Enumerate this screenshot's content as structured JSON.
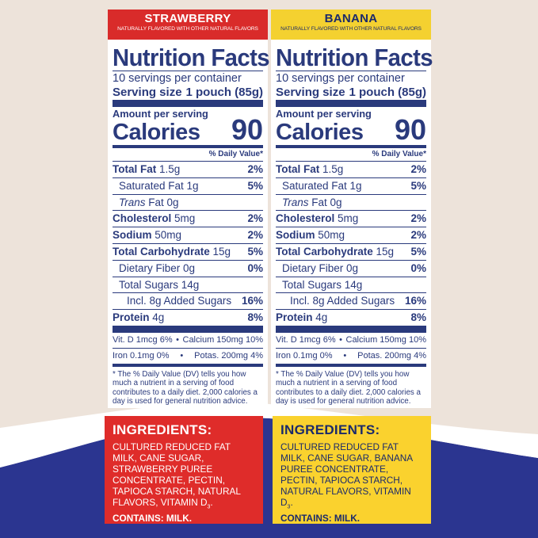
{
  "colors": {
    "strawberry_red": "#d92b2a",
    "banana_yellow": "#f4d130",
    "navy": "#2a3a7c",
    "background_cream": "#ede3da",
    "wave_blue": "#2b3590"
  },
  "labels": [
    {
      "flavor": "STRAWBERRY",
      "subtitle": "NATURALLY FLAVORED WITH OTHER NATURAL FLAVORS",
      "title": "Nutrition Facts",
      "servings": "10 servings per container",
      "serving_size_label": "Serving size",
      "serving_size_value": "1 pouch (85g)",
      "amount_per_serving": "Amount per serving",
      "calories_label": "Calories",
      "calories_value": "90",
      "dv_header": "% Daily Value*",
      "total_fat_label": "Total Fat",
      "total_fat_amount": "1.5g",
      "total_fat_dv": "2%",
      "sat_fat": "Saturated Fat 1g",
      "sat_fat_dv": "5%",
      "trans_fat_label": "Trans",
      "trans_fat_rest": "Fat 0g",
      "cholesterol_label": "Cholesterol",
      "cholesterol_amount": "5mg",
      "cholesterol_dv": "2%",
      "sodium_label": "Sodium",
      "sodium_amount": "50mg",
      "sodium_dv": "2%",
      "carb_label": "Total Carbohydrate",
      "carb_amount": "15g",
      "carb_dv": "5%",
      "fiber": "Dietary Fiber 0g",
      "fiber_dv": "0%",
      "sugars": "Total Sugars 14g",
      "added_sugars": "Incl. 8g Added Sugars",
      "added_sugars_dv": "16%",
      "protein_label": "Protein",
      "protein_amount": "4g",
      "protein_dv": "8%",
      "vitd": "Vit. D 1mcg 6%",
      "calcium": "Calcium 150mg 10%",
      "iron": "Iron 0.1mg 0%",
      "potassium": "Potas. 200mg 4%",
      "bullet": "•",
      "footnote": "* The % Daily Value (DV) tells you how much a nutrient in a serving of food contributes to a daily diet. 2,000 calories a day is used for general nutrition advice.",
      "ingredients_heading": "INGREDIENTS:",
      "ingredients_text": "CULTURED REDUCED FAT MILK, CANE SUGAR, STRAWBERRY PUREE CONCENTRATE, PECTIN, TAPIOCA STARCH, NATURAL FLAVORS, VITAMIN D",
      "ingredients_sub": "3",
      "ingredients_end": ".",
      "contains": "CONTAINS: MILK."
    },
    {
      "flavor": "BANANA",
      "subtitle": "NATURALLY FLAVORED WITH OTHER NATURAL FLAVORS",
      "title": "Nutrition Facts",
      "servings": "10 servings per container",
      "serving_size_label": "Serving size",
      "serving_size_value": "1 pouch (85g)",
      "amount_per_serving": "Amount per serving",
      "calories_label": "Calories",
      "calories_value": "90",
      "dv_header": "% Daily Value*",
      "total_fat_label": "Total Fat",
      "total_fat_amount": "1.5g",
      "total_fat_dv": "2%",
      "sat_fat": "Saturated Fat 1g",
      "sat_fat_dv": "5%",
      "trans_fat_label": "Trans",
      "trans_fat_rest": "Fat 0g",
      "cholesterol_label": "Cholesterol",
      "cholesterol_amount": "5mg",
      "cholesterol_dv": "2%",
      "sodium_label": "Sodium",
      "sodium_amount": "50mg",
      "sodium_dv": "2%",
      "carb_label": "Total Carbohydrate",
      "carb_amount": "15g",
      "carb_dv": "5%",
      "fiber": "Dietary Fiber 0g",
      "fiber_dv": "0%",
      "sugars": "Total Sugars 14g",
      "added_sugars": "Incl. 8g Added Sugars",
      "added_sugars_dv": "16%",
      "protein_label": "Protein",
      "protein_amount": "4g",
      "protein_dv": "8%",
      "vitd": "Vit. D 1mcg 6%",
      "calcium": "Calcium 150mg 10%",
      "iron": "Iron 0.1mg 0%",
      "potassium": "Potas. 200mg 4%",
      "bullet": "•",
      "footnote": "* The % Daily Value (DV) tells you how much a nutrient in a serving of food contributes to a daily diet. 2,000 calories a day is used for general nutrition advice.",
      "ingredients_heading": "INGREDIENTS:",
      "ingredients_text": "CULTURED REDUCED FAT MILK, CANE SUGAR, BANANA PUREE CONCENTRATE, PECTIN, TAPIOCA STARCH, NATURAL FLAVORS, VITAMIN D",
      "ingredients_sub": "3",
      "ingredients_end": ".",
      "contains": "CONTAINS: MILK."
    }
  ]
}
